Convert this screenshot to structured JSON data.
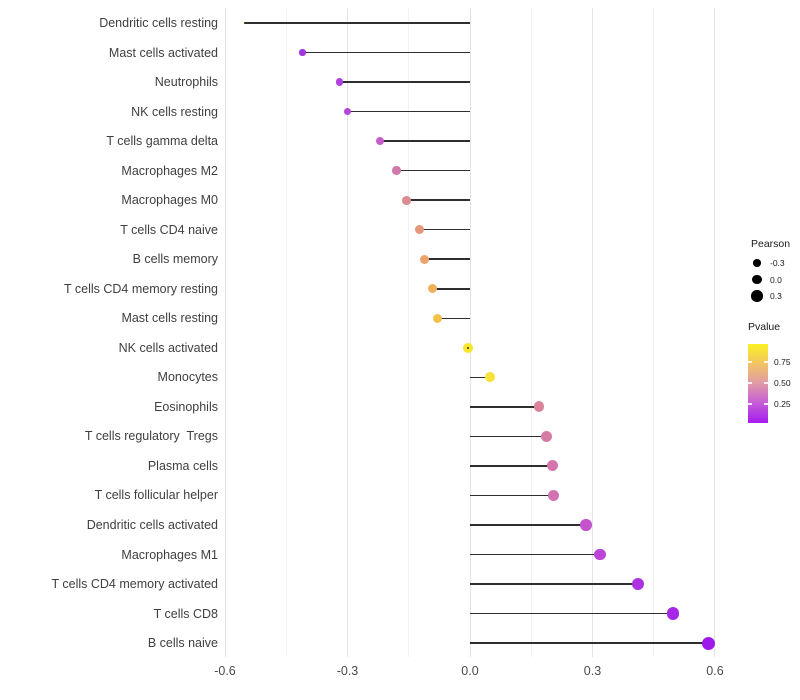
{
  "figure": {
    "background": "#ffffff",
    "text_color": "#3f3f3f"
  },
  "chart_data": {
    "type": "lollipop",
    "orientation": "horizontal",
    "title": "",
    "xlabel": "",
    "ylabel": "",
    "grid": "vertical major+minor, no axis lines (minimal theme)",
    "x_ticks": [
      -0.6,
      -0.3,
      0.0,
      0.3,
      0.6
    ],
    "x_tick_labels": [
      "-0.6",
      "-0.3",
      "0.0",
      "0.3",
      "0.6"
    ],
    "xlim": [
      -0.62,
      0.64
    ],
    "stem_color": "#2e2e2e",
    "points": [
      {
        "label": "Dendritic cells resting",
        "pearson": -0.55,
        "pvalue_est": 0.1,
        "color": "#8a2be0"
      },
      {
        "label": "Mast cells activated",
        "pearson": -0.41,
        "pvalue_est": 0.15,
        "color": "#a337de"
      },
      {
        "label": "Neutrophils",
        "pearson": -0.32,
        "pvalue_est": 0.18,
        "color": "#ae41dc"
      },
      {
        "label": "NK cells resting",
        "pearson": -0.3,
        "pvalue_est": 0.2,
        "color": "#b346d9"
      },
      {
        "label": "T cells gamma delta",
        "pearson": -0.22,
        "pvalue_est": 0.28,
        "color": "#c55ec8"
      },
      {
        "label": "Macrophages M2",
        "pearson": -0.18,
        "pvalue_est": 0.38,
        "color": "#d179ab"
      },
      {
        "label": "Macrophages M0",
        "pearson": -0.155,
        "pvalue_est": 0.47,
        "color": "#dc8b93"
      },
      {
        "label": "T cells CD4 naive",
        "pearson": -0.123,
        "pvalue_est": 0.55,
        "color": "#e59879"
      },
      {
        "label": "B cells memory",
        "pearson": -0.112,
        "pvalue_est": 0.6,
        "color": "#eba46c"
      },
      {
        "label": "T cells CD4 memory resting",
        "pearson": -0.091,
        "pvalue_est": 0.66,
        "color": "#f0b05b"
      },
      {
        "label": "Mast cells resting",
        "pearson": -0.079,
        "pvalue_est": 0.72,
        "color": "#f3c04a"
      },
      {
        "label": "NK cells activated",
        "pearson": -0.005,
        "pvalue_est": 0.95,
        "color": "#f6e62c"
      },
      {
        "label": "Monocytes",
        "pearson": 0.049,
        "pvalue_est": 0.9,
        "color": "#f5e338"
      },
      {
        "label": "Eosinophils",
        "pearson": 0.169,
        "pvalue_est": 0.45,
        "color": "#d9849b"
      },
      {
        "label": "T cells regulatory  Tregs",
        "pearson": 0.188,
        "pvalue_est": 0.43,
        "color": "#d57ca6"
      },
      {
        "label": "Plasma cells",
        "pearson": 0.202,
        "pvalue_est": 0.41,
        "color": "#d476ad"
      },
      {
        "label": "T cells follicular helper",
        "pearson": 0.204,
        "pvalue_est": 0.4,
        "color": "#d272b0"
      },
      {
        "label": "Dendritic cells activated",
        "pearson": 0.284,
        "pvalue_est": 0.3,
        "color": "#c454cc"
      },
      {
        "label": "Macrophages M1",
        "pearson": 0.318,
        "pvalue_est": 0.24,
        "color": "#bc44d7"
      },
      {
        "label": "T cells CD4 memory activated",
        "pearson": 0.412,
        "pvalue_est": 0.14,
        "color": "#ac31e3"
      },
      {
        "label": "T cells CD8",
        "pearson": 0.497,
        "pvalue_est": 0.09,
        "color": "#a527e8"
      },
      {
        "label": "B cells naive",
        "pearson": 0.583,
        "pvalue_est": 0.04,
        "color": "#9d1aeb"
      }
    ],
    "legend": {
      "size": {
        "title": "Pearson",
        "entry_labels": [
          "-0.3",
          "0.0",
          "0.3"
        ],
        "entry_values": [
          -0.3,
          0.0,
          0.3
        ],
        "swatch_color": "#000000"
      },
      "color": {
        "title": "Pvalue",
        "tick_labels": [
          "0.75",
          "0.50",
          "0.25"
        ],
        "tick_values": [
          0.75,
          0.5,
          0.25
        ],
        "bar_range": [
          0.97,
          0.02
        ],
        "gradient_top_to_bottom": [
          "#fbf224",
          "#f2c363",
          "#e09aa8",
          "#c55cd6",
          "#a51bf0"
        ]
      }
    }
  }
}
